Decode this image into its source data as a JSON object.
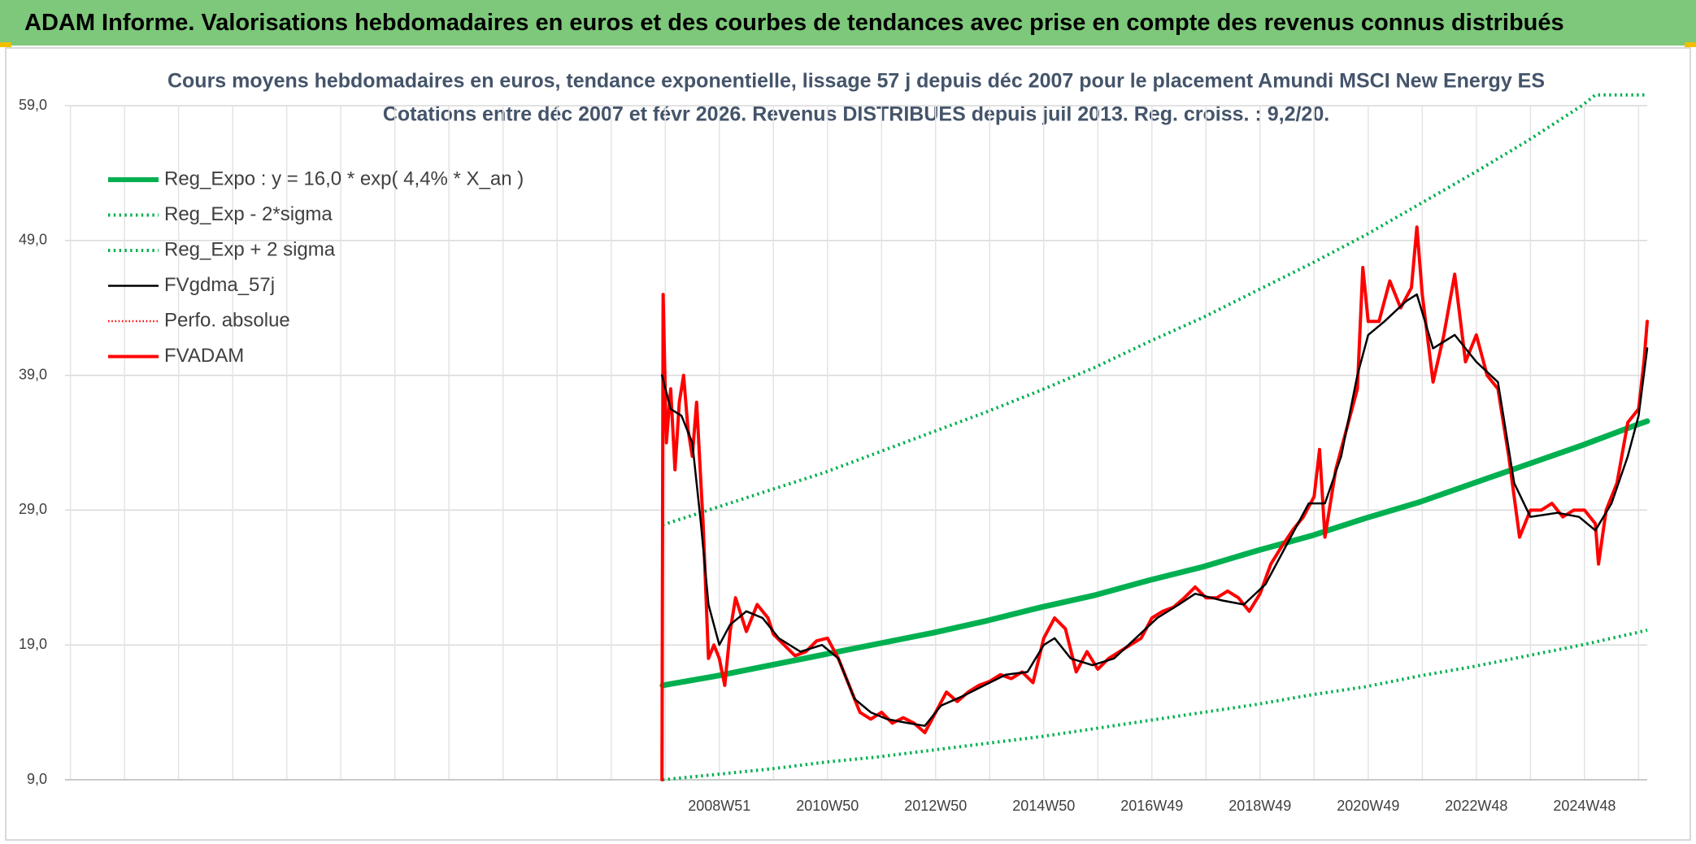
{
  "header": {
    "title": "ADAM Informe. Valorisations hebdomadaires en euros et des courbes de tendances avec prise en compte des revenus connus distribués"
  },
  "chart_data": {
    "type": "line",
    "title": "Cours moyens hebdomadaires en euros, tendance exponentielle, lissage 57 j depuis déc 2007 pour le placement Amundi MSCI New Energy ES",
    "subtitle": "Cotations entre déc 2007 et févr 2026. Revenus DISTRIBUES depuis juil 2013. Reg. croiss. : 9,2/20.",
    "xlim": [
      1996.87,
      2026.13
    ],
    "xticks": [
      {
        "value": 2008.97,
        "label": "2008W51"
      },
      {
        "value": 2010.97,
        "label": "2010W50"
      },
      {
        "value": 2012.97,
        "label": "2012W50"
      },
      {
        "value": 2014.97,
        "label": "2014W50"
      },
      {
        "value": 2016.97,
        "label": "2016W49"
      },
      {
        "value": 2018.97,
        "label": "2018W49"
      },
      {
        "value": 2020.97,
        "label": "2020W49"
      },
      {
        "value": 2022.97,
        "label": "2022W48"
      },
      {
        "value": 2024.97,
        "label": "2024W48"
      }
    ],
    "ylim": [
      9,
      59
    ],
    "yticks": [
      {
        "value": 9,
        "label": "9,0"
      },
      {
        "value": 19,
        "label": "19,0"
      },
      {
        "value": 29,
        "label": "29,0"
      },
      {
        "value": 39,
        "label": "39,0"
      },
      {
        "value": 49,
        "label": "49,0"
      },
      {
        "value": 59,
        "label": "59,0"
      }
    ],
    "grid": true,
    "legend": "top-left",
    "series": [
      {
        "name": "Reg_Expo : y = 16,0 * exp( 4,4% *  X_an )",
        "color": "#00b050",
        "style": "solid",
        "width": 7,
        "x": [
          2007.92,
          2008.92,
          2009.92,
          2010.92,
          2011.92,
          2012.92,
          2013.92,
          2014.92,
          2015.92,
          2016.92,
          2017.92,
          2018.92,
          2019.92,
          2020.92,
          2021.92,
          2022.92,
          2023.92,
          2024.92,
          2025.92,
          2026.13
        ],
        "values": [
          16.0,
          16.7,
          17.5,
          18.3,
          19.1,
          19.9,
          20.8,
          21.8,
          22.7,
          23.8,
          24.8,
          26.0,
          27.1,
          28.4,
          29.6,
          31.0,
          32.4,
          33.8,
          35.3,
          35.6
        ]
      },
      {
        "name": "Reg_Exp - 2*sigma",
        "color": "#00b050",
        "style": "dotted",
        "width": 4,
        "x": [
          2007.92,
          2008.92,
          2009.92,
          2010.92,
          2011.92,
          2012.92,
          2013.92,
          2014.92,
          2015.92,
          2016.92,
          2017.92,
          2018.92,
          2019.92,
          2020.92,
          2021.92,
          2022.92,
          2023.92,
          2024.92,
          2025.92,
          2026.13
        ],
        "values": [
          9.0,
          9.4,
          9.8,
          10.3,
          10.7,
          11.2,
          11.7,
          12.2,
          12.8,
          13.4,
          14.0,
          14.6,
          15.3,
          15.9,
          16.7,
          17.4,
          18.2,
          19.0,
          19.9,
          20.1
        ]
      },
      {
        "name": "Reg_Exp + 2 sigma",
        "color": "#00b050",
        "style": "dotted",
        "width": 4,
        "x": [
          2007.92,
          2008.92,
          2009.92,
          2010.92,
          2011.92,
          2012.92,
          2013.92,
          2014.92,
          2015.92,
          2016.92,
          2017.92,
          2018.92,
          2019.92,
          2020.92,
          2021.92,
          2022.92,
          2023.92,
          2024.92,
          2025.17,
          2026.13
        ],
        "values": [
          27.9,
          29.2,
          30.5,
          31.8,
          33.3,
          34.8,
          36.3,
          37.9,
          39.6,
          41.5,
          43.3,
          45.3,
          47.3,
          49.4,
          51.7,
          54.0,
          56.4,
          59.0,
          59.8,
          59.8
        ]
      },
      {
        "name": "FVgdma_57j",
        "color": "#000000",
        "style": "solid",
        "width": 2.5,
        "x": [
          2007.91,
          2008.07,
          2008.27,
          2008.47,
          2008.63,
          2008.77,
          2008.97,
          2009.17,
          2009.47,
          2009.77,
          2010.07,
          2010.47,
          2010.87,
          2011.17,
          2011.47,
          2011.77,
          2012.07,
          2012.47,
          2012.77,
          2013.07,
          2013.47,
          2013.87,
          2014.27,
          2014.67,
          2014.97,
          2015.17,
          2015.47,
          2015.87,
          2016.27,
          2016.67,
          2017.07,
          2017.47,
          2017.77,
          2018.27,
          2018.67,
          2019.07,
          2019.47,
          2019.87,
          2020.17,
          2020.47,
          2020.77,
          2020.97,
          2021.27,
          2021.67,
          2021.87,
          2022.17,
          2022.57,
          2022.97,
          2023.37,
          2023.67,
          2023.97,
          2024.47,
          2024.87,
          2025.17,
          2025.47,
          2025.77,
          2025.97,
          2026.13
        ],
        "values": [
          39,
          36.5,
          36,
          34,
          28,
          22,
          19,
          20.5,
          21.5,
          21,
          19.5,
          18.5,
          19,
          18,
          15,
          14,
          13.5,
          13.2,
          13,
          14.5,
          15.2,
          16,
          16.8,
          17,
          19,
          19.5,
          18,
          17.5,
          18,
          19.5,
          21,
          22,
          22.8,
          22.3,
          22,
          23.5,
          26.5,
          29.5,
          29.5,
          33,
          39,
          42,
          43,
          44.5,
          45,
          41,
          42,
          40,
          38.5,
          31,
          28.5,
          28.8,
          28.5,
          27.5,
          29.5,
          33,
          36,
          41
        ]
      },
      {
        "name": "Perfo. absolue",
        "color": "#ff0000",
        "style": "dotted",
        "width": 2.5,
        "x": [],
        "values": []
      },
      {
        "name": "FVADAM",
        "color": "#ff0000",
        "style": "solid",
        "width": 4,
        "x": [
          2007.91,
          2007.93,
          2007.99,
          2008.07,
          2008.15,
          2008.23,
          2008.31,
          2008.39,
          2008.47,
          2008.55,
          2008.63,
          2008.67,
          2008.77,
          2008.87,
          2008.97,
          2009.07,
          2009.17,
          2009.27,
          2009.47,
          2009.67,
          2009.87,
          2009.97,
          2010.17,
          2010.37,
          2010.57,
          2010.77,
          2010.97,
          2011.17,
          2011.37,
          2011.57,
          2011.77,
          2011.97,
          2012.17,
          2012.37,
          2012.57,
          2012.77,
          2012.97,
          2013.17,
          2013.37,
          2013.57,
          2013.77,
          2013.97,
          2014.17,
          2014.37,
          2014.57,
          2014.77,
          2014.97,
          2015.17,
          2015.37,
          2015.57,
          2015.77,
          2015.97,
          2016.17,
          2016.37,
          2016.57,
          2016.77,
          2016.97,
          2017.17,
          2017.37,
          2017.57,
          2017.77,
          2017.97,
          2018.17,
          2018.37,
          2018.57,
          2018.77,
          2018.97,
          2019.17,
          2019.37,
          2019.57,
          2019.77,
          2019.97,
          2020.07,
          2020.17,
          2020.37,
          2020.57,
          2020.77,
          2020.87,
          2020.97,
          2021.17,
          2021.37,
          2021.57,
          2021.77,
          2021.87,
          2021.97,
          2022.17,
          2022.37,
          2022.57,
          2022.77,
          2022.97,
          2023.17,
          2023.37,
          2023.57,
          2023.77,
          2023.97,
          2024.17,
          2024.37,
          2024.57,
          2024.77,
          2024.97,
          2025.17,
          2025.23,
          2025.37,
          2025.57,
          2025.77,
          2025.97,
          2026.07,
          2026.13
        ],
        "values": [
          9.0,
          45.0,
          34,
          38,
          32,
          37,
          39,
          35,
          33,
          37,
          31,
          28,
          18,
          19,
          18,
          16,
          20,
          22.5,
          20,
          22,
          21,
          19.8,
          19,
          18.2,
          18.5,
          19.3,
          19.5,
          18,
          16,
          14,
          13.5,
          14,
          13.2,
          13.6,
          13.2,
          12.5,
          14,
          15.5,
          14.8,
          15.5,
          16,
          16.3,
          16.8,
          16.5,
          17,
          16.2,
          19.5,
          21,
          20.2,
          17,
          18.5,
          17.2,
          18,
          18.5,
          19,
          19.5,
          21,
          21.5,
          21.8,
          22.5,
          23.3,
          22.5,
          22.5,
          23,
          22.5,
          21.5,
          22.8,
          25,
          26.3,
          27.5,
          28.5,
          30,
          33.5,
          27,
          32,
          35,
          38,
          47,
          43,
          43,
          46,
          44,
          45.5,
          50,
          45,
          38.5,
          42,
          46.5,
          40,
          42,
          39,
          38,
          33,
          27,
          29,
          29,
          29.5,
          28.5,
          29,
          29,
          28,
          25,
          29,
          31,
          35.5,
          36.5,
          40,
          43
        ]
      }
    ]
  }
}
